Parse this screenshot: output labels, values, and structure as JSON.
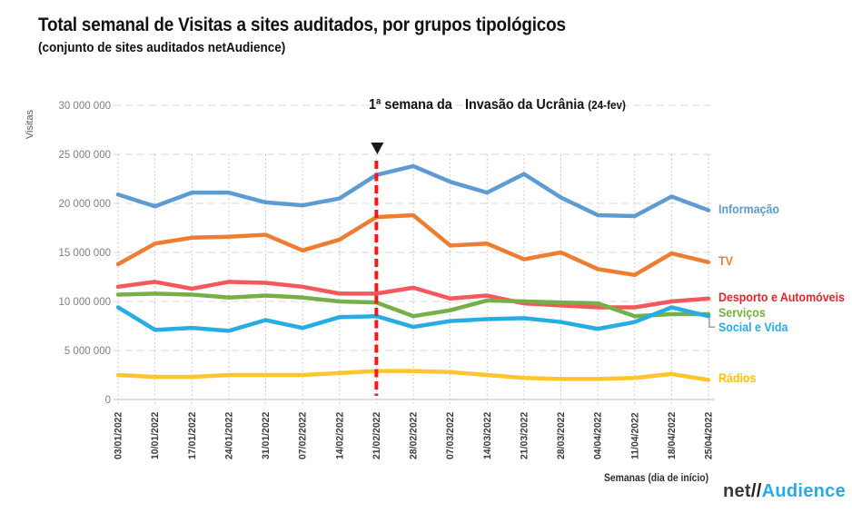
{
  "header": {
    "title": "Total semanal de Visitas a sites auditados, por grupos tipológicos",
    "subtitle": "(conjunto de sites auditados netAudience)"
  },
  "annotation": {
    "line1": "1ª semana da",
    "line2": "Invasão da Ucrânia",
    "line2_suffix": "(24-fev)",
    "marker_glyph": "▼",
    "line_color": "#ed1c1c"
  },
  "axes": {
    "y_title": "Visitas",
    "x_title": "Semanas (dia de início)"
  },
  "logo": {
    "net": "net",
    "slashes": "//",
    "audience": "Audience"
  },
  "chart_data": {
    "type": "line",
    "title": "Total semanal de Visitas a sites auditados, por grupos tipológicos",
    "subtitle": "(conjunto de sites auditados netAudience)",
    "xlabel": "Semanas (dia de início)",
    "ylabel": "Visitas",
    "unit": "millions of visits per week",
    "ylim": [
      0,
      30
    ],
    "grid": {
      "horizontal": "dashed",
      "vertical": "dotted"
    },
    "legend_position": "right of line endpoints",
    "y_ticks": [
      {
        "value": 0,
        "label": "0"
      },
      {
        "value": 5,
        "label": "5 000 000"
      },
      {
        "value": 10,
        "label": "10 000 000"
      },
      {
        "value": 15,
        "label": "15 000 000"
      },
      {
        "value": 20,
        "label": "20 000 000"
      },
      {
        "value": 25,
        "label": "25 000 000"
      },
      {
        "value": 30,
        "label": "30 000 000"
      }
    ],
    "x": [
      "03/01/2022",
      "10/01/2022",
      "17/01/2022",
      "24/01/2022",
      "31/01/2022",
      "07/02/2022",
      "14/02/2022",
      "21/02/2022",
      "28/02/2022",
      "07/03/2022",
      "14/03/2022",
      "21/03/2022",
      "28/03/2022",
      "04/04/2022",
      "11/04/2022",
      "18/04/2022",
      "25/04/2022"
    ],
    "series": [
      {
        "name": "Informação",
        "color": "#5e9bd3",
        "label_color": "#5b9bd5",
        "label_offset_y": 0,
        "leader_line": false,
        "values": [
          20.9,
          19.7,
          21.1,
          21.1,
          20.1,
          19.8,
          20.5,
          22.9,
          23.8,
          22.2,
          21.1,
          23.0,
          20.6,
          18.8,
          18.7,
          20.7,
          19.3
        ]
      },
      {
        "name": "TV",
        "color": "#ed7d31",
        "label_color": "#ed7d31",
        "label_offset_y": 0,
        "leader_line": false,
        "values": [
          13.8,
          15.9,
          16.5,
          16.6,
          16.8,
          15.2,
          16.3,
          18.6,
          18.8,
          15.7,
          15.9,
          14.3,
          15.0,
          13.3,
          12.7,
          14.9,
          14.0
        ]
      },
      {
        "name": "Desporto e Automóveis",
        "color": "#f4575c",
        "label_color": "#e8212c",
        "label_offset_y": 0,
        "leader_line": false,
        "values": [
          11.5,
          12.0,
          11.3,
          12.0,
          11.9,
          11.5,
          10.8,
          10.8,
          11.4,
          10.3,
          10.6,
          9.8,
          9.6,
          9.4,
          9.4,
          10.0,
          10.3
        ]
      },
      {
        "name": "Serviços",
        "color": "#76ae48",
        "label_color": "#76b041",
        "label_offset_y": 0,
        "leader_line": false,
        "values": [
          10.7,
          10.8,
          10.7,
          10.4,
          10.6,
          10.4,
          10.0,
          9.9,
          8.5,
          9.1,
          10.1,
          10.0,
          9.9,
          9.8,
          8.5,
          8.7,
          8.7
        ]
      },
      {
        "name": "Social e Vida",
        "color": "#27ace3",
        "label_color": "#29abe2",
        "label_offset_y": 14,
        "leader_line": true,
        "values": [
          9.4,
          7.1,
          7.3,
          7.0,
          8.1,
          7.3,
          8.4,
          8.5,
          7.4,
          8.0,
          8.2,
          8.3,
          7.9,
          7.2,
          7.9,
          9.4,
          8.5
        ]
      },
      {
        "name": "Rádios",
        "color": "#ffc52e",
        "label_color": "#ffc000",
        "label_offset_y": 0,
        "leader_line": false,
        "values": [
          2.5,
          2.3,
          2.3,
          2.5,
          2.5,
          2.5,
          2.7,
          2.9,
          2.9,
          2.8,
          2.5,
          2.2,
          2.1,
          2.1,
          2.2,
          2.6,
          2.0
        ]
      }
    ],
    "event_marker": {
      "x": "21/02/2022",
      "x_index": 7,
      "style": "red dashed vertical line",
      "color": "#ed1c1c",
      "label": "1ª semana da Invasão da Ucrânia (24-fev)"
    }
  }
}
